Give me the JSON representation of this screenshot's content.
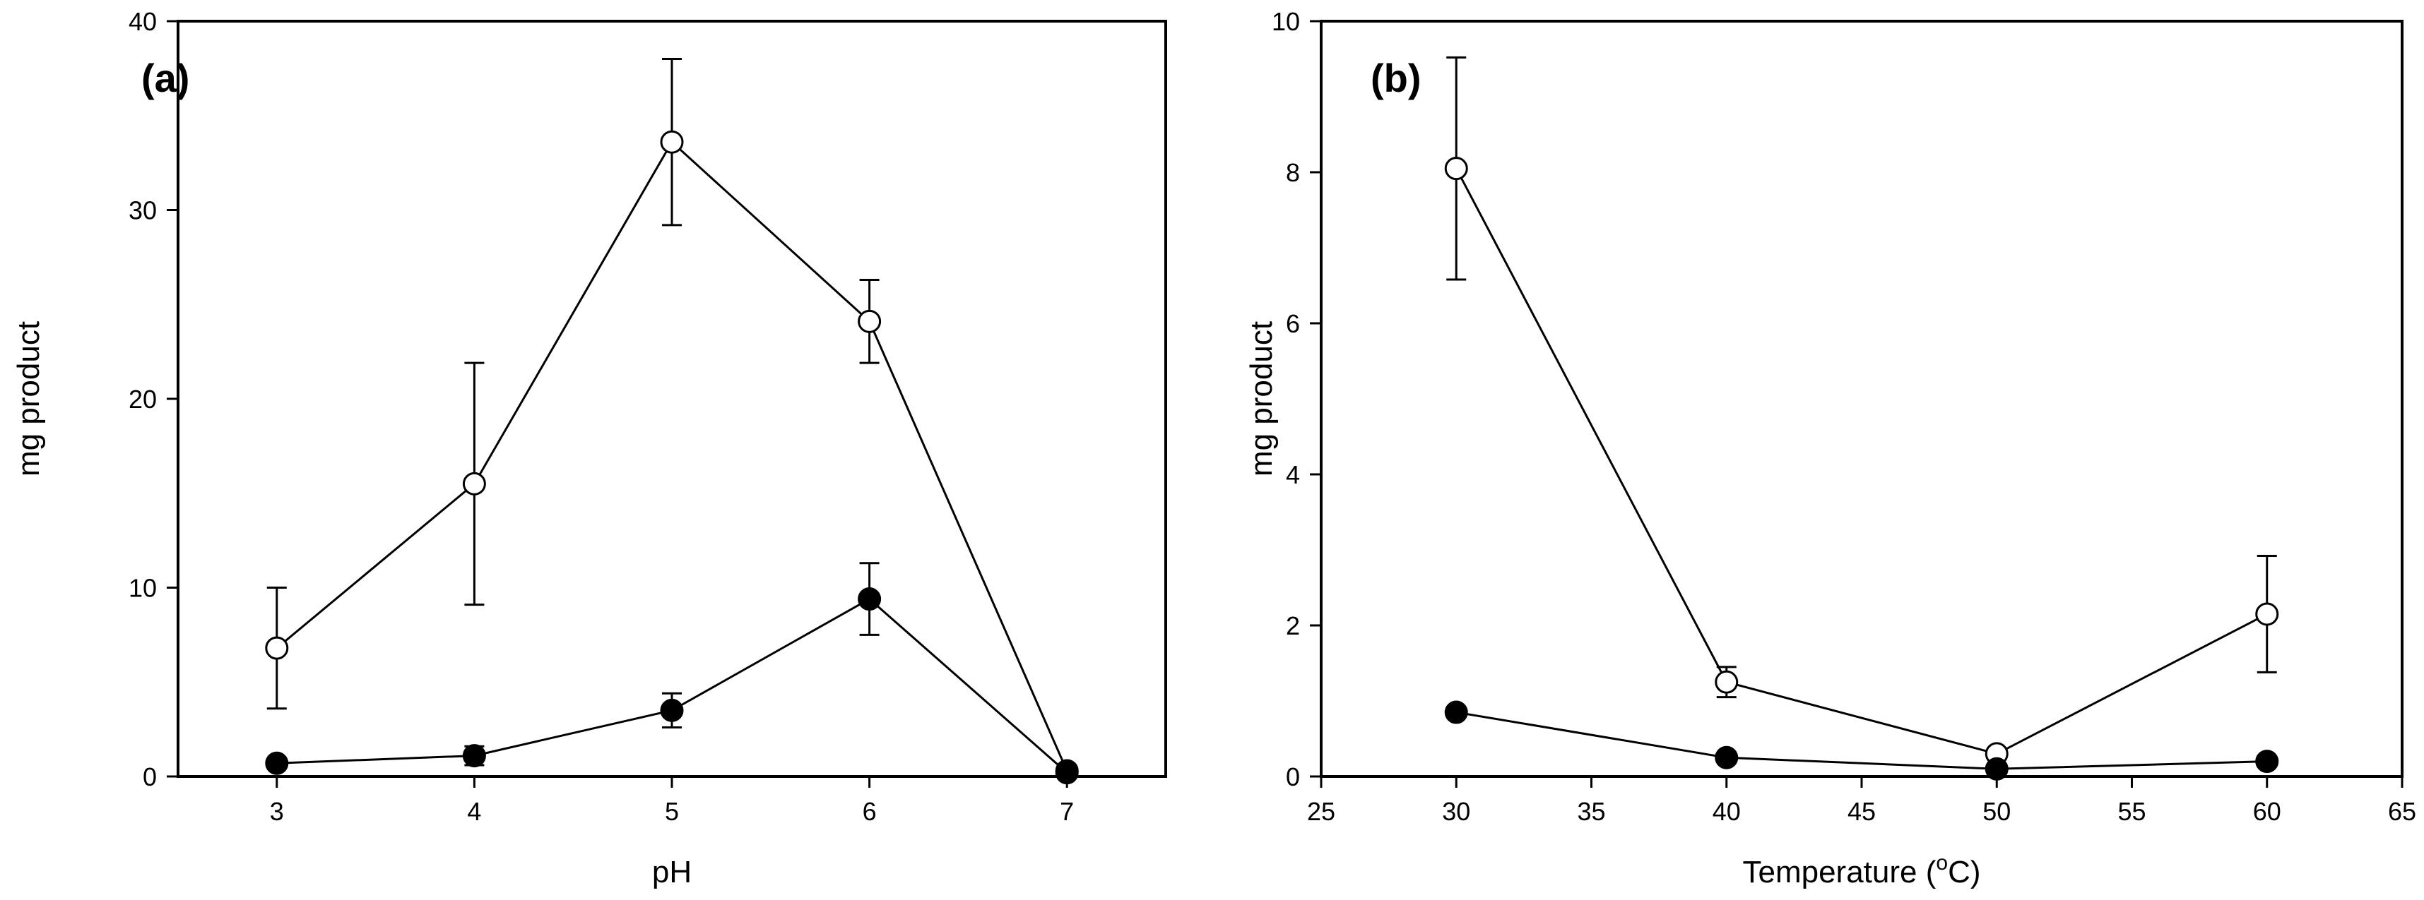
{
  "chart_data": [
    {
      "type": "line",
      "panel_label": "(a)",
      "title": "",
      "xlabel": "pH",
      "ylabel": "mg product",
      "xlim": [
        2.5,
        7.5
      ],
      "ylim": [
        0,
        40
      ],
      "xticks": [
        3,
        4,
        5,
        6,
        7
      ],
      "yticks": [
        0,
        10,
        20,
        30,
        40
      ],
      "xtick_labels": [
        "3",
        "4",
        "5",
        "6",
        "7"
      ],
      "ytick_labels": [
        "0",
        "10",
        "20",
        "30",
        "40"
      ],
      "grid": false,
      "series": [
        {
          "name": "open circles",
          "marker": "open-circle",
          "x": [
            3,
            4,
            5,
            6,
            7
          ],
          "y": [
            6.8,
            15.5,
            33.6,
            24.1,
            0.3
          ],
          "err": [
            3.2,
            6.4,
            4.4,
            2.2,
            0
          ]
        },
        {
          "name": "filled circles",
          "marker": "filled-circle",
          "x": [
            3,
            4,
            5,
            6,
            7
          ],
          "y": [
            0.7,
            1.1,
            3.5,
            9.4,
            0.2
          ],
          "err": [
            0,
            0.5,
            0.9,
            1.9,
            0
          ]
        }
      ]
    },
    {
      "type": "line",
      "panel_label": "(b)",
      "title": "",
      "xlabel": "Temperature (°C)",
      "ylabel": "mg product",
      "xlim": [
        25,
        65
      ],
      "ylim": [
        0,
        10
      ],
      "xticks": [
        25,
        30,
        35,
        40,
        45,
        50,
        55,
        60,
        65
      ],
      "yticks": [
        0,
        2,
        4,
        6,
        8,
        10
      ],
      "xtick_labels": [
        "25",
        "30",
        "35",
        "40",
        "45",
        "50",
        "55",
        "60",
        "65"
      ],
      "ytick_labels": [
        "0",
        "2",
        "4",
        "6",
        "8",
        "10"
      ],
      "grid": false,
      "series": [
        {
          "name": "open circles",
          "marker": "open-circle",
          "x": [
            30,
            40,
            50,
            60
          ],
          "y": [
            8.05,
            1.25,
            0.3,
            2.15
          ],
          "err": [
            1.47,
            0.2,
            0,
            0.77
          ]
        },
        {
          "name": "filled circles",
          "marker": "filled-circle",
          "x": [
            30,
            40,
            50,
            60
          ],
          "y": [
            0.85,
            0.25,
            0.1,
            0.2
          ],
          "err": [
            0,
            0,
            0,
            0
          ]
        }
      ]
    }
  ]
}
